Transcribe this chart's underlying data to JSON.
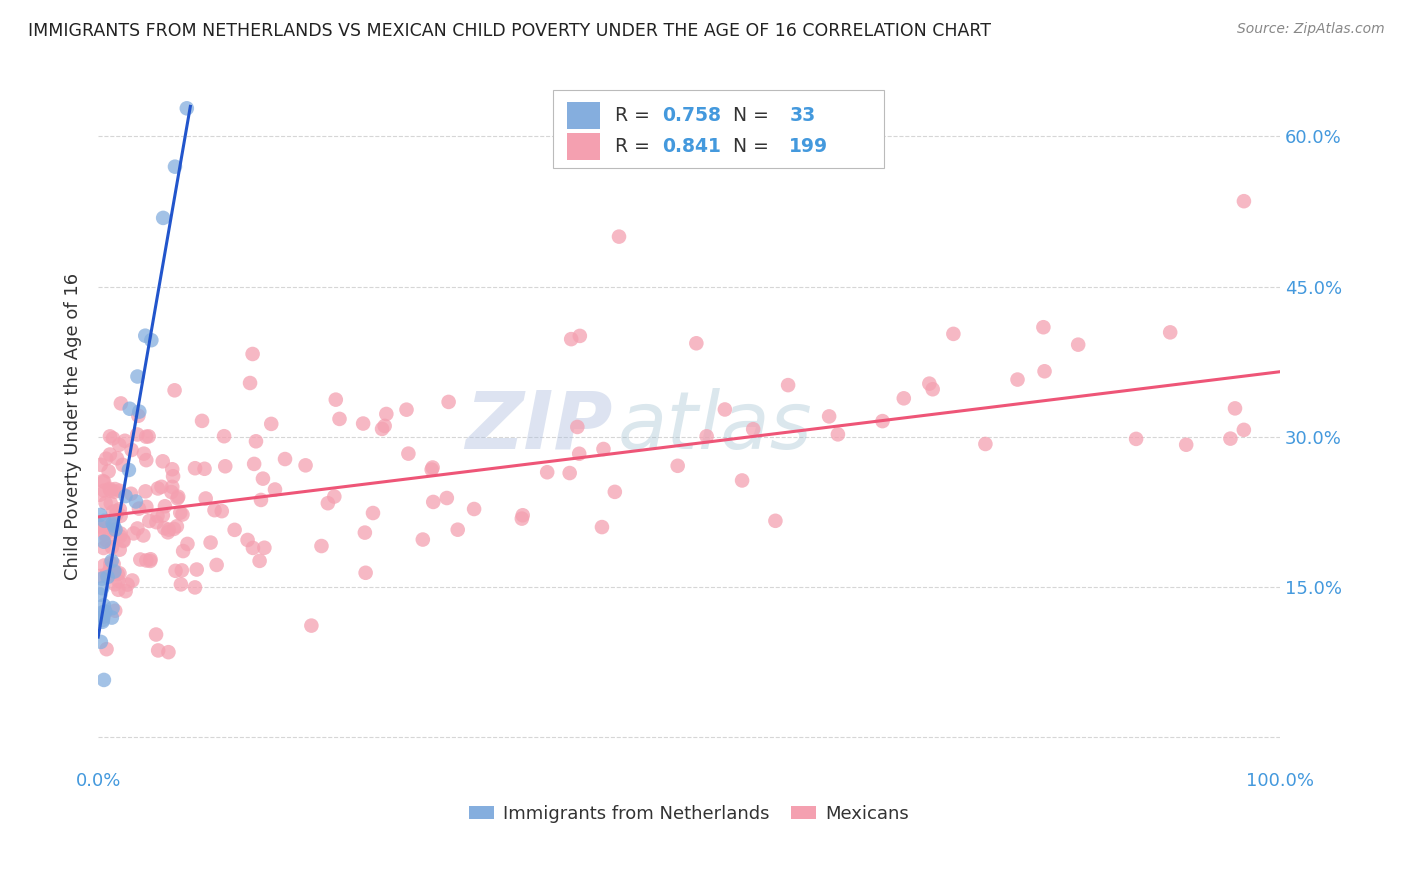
{
  "title": "IMMIGRANTS FROM NETHERLANDS VS MEXICAN CHILD POVERTY UNDER THE AGE OF 16 CORRELATION CHART",
  "source": "Source: ZipAtlas.com",
  "ylabel": "Child Poverty Under the Age of 16",
  "xlim": [
    0,
    1.0
  ],
  "ylim": [
    -0.03,
    0.65
  ],
  "xticks": [
    0.0,
    0.1,
    0.2,
    0.3,
    0.4,
    0.5,
    0.6,
    0.7,
    0.8,
    0.9,
    1.0
  ],
  "xticklabels": [
    "0.0%",
    "",
    "",
    "",
    "",
    "",
    "",
    "",
    "",
    "",
    "100.0%"
  ],
  "yticks": [
    0.0,
    0.15,
    0.3,
    0.45,
    0.6
  ],
  "yticklabels": [
    "",
    "15.0%",
    "30.0%",
    "45.0%",
    "60.0%"
  ],
  "legend_r1": "R = 0.758",
  "legend_n1": "N =  33",
  "legend_r2": "R = 0.841",
  "legend_n2": "N = 199",
  "blue_color": "#85AEDE",
  "pink_color": "#F4A0B0",
  "blue_line_color": "#2255CC",
  "pink_line_color": "#EE5577",
  "background_color": "#FFFFFF",
  "grid_color": "#CCCCCC",
  "title_color": "#222222",
  "axis_label_color": "#333333",
  "tick_label_color": "#4499DD",
  "blue_trend_x": [
    0.0,
    0.078
  ],
  "blue_trend_y": [
    0.1,
    0.63
  ],
  "pink_trend_x": [
    0.0,
    1.0
  ],
  "pink_trend_y": [
    0.22,
    0.365
  ],
  "figsize": [
    14.06,
    8.92
  ],
  "dpi": 100
}
